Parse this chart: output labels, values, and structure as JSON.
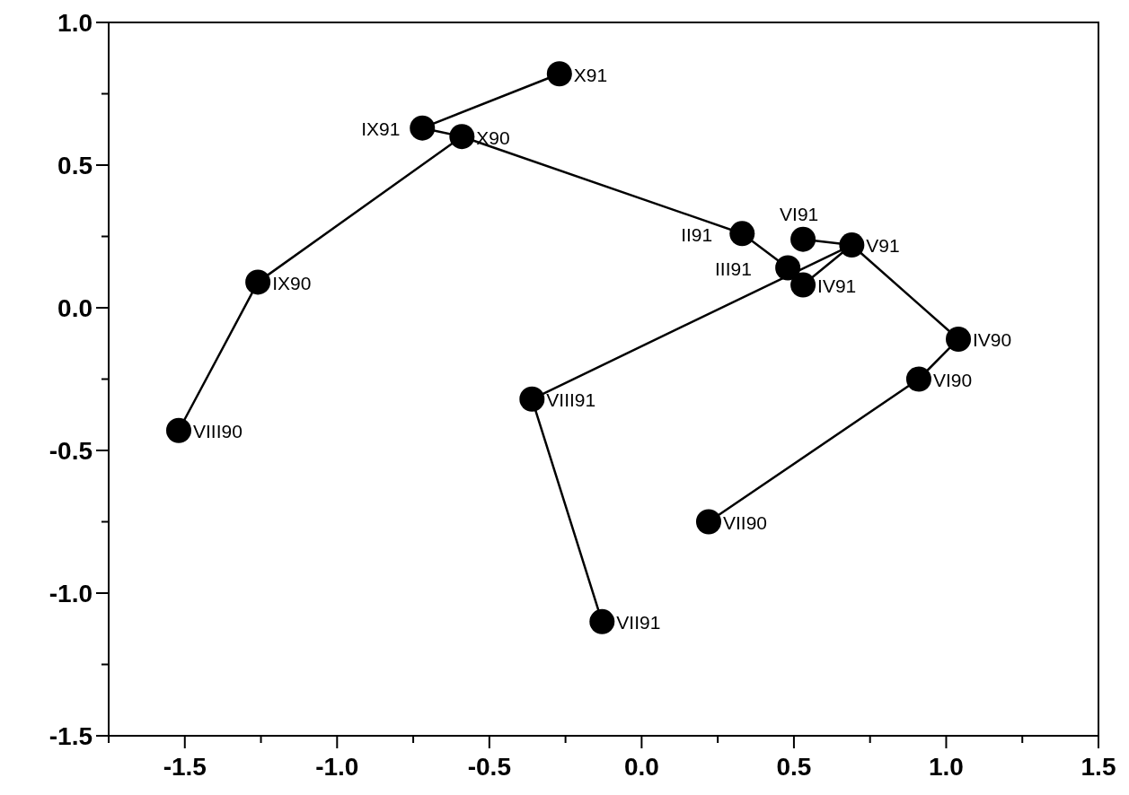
{
  "chart_data": {
    "type": "line",
    "series": [
      {
        "color": "#000000",
        "marker": "none",
        "x": [
          0.22,
          0.91,
          1.04,
          0.69
        ],
        "values": [
          -0.75,
          -0.25,
          -0.11,
          0.22
        ]
      },
      {
        "color": "#000000",
        "marker": "none",
        "x": [
          -1.52,
          -1.26,
          -0.59,
          0.33,
          0.48,
          0.53,
          0.69,
          0.53
        ],
        "values": [
          -0.43,
          0.09,
          0.6,
          0.26,
          0.14,
          0.08,
          0.22,
          0.24
        ]
      },
      {
        "color": "#000000",
        "marker": "none",
        "x": [
          0.69,
          -0.36,
          -0.13
        ],
        "values": [
          0.22,
          -0.32,
          -1.1
        ]
      },
      {
        "color": "#000000",
        "marker": "none",
        "x": [
          -0.59,
          -0.72,
          -0.27
        ],
        "values": [
          0.6,
          0.63,
          0.82
        ]
      },
      {
        "type": "scatter",
        "color": "#000000",
        "marker": "circle",
        "x": [
          1.04,
          0.91,
          0.22,
          -1.52,
          -1.26,
          -0.59,
          0.33,
          0.48,
          0.53,
          0.69,
          0.53,
          -0.13,
          -0.36,
          -0.72,
          -0.27
        ],
        "values": [
          -0.11,
          -0.25,
          -0.75,
          -0.43,
          0.09,
          0.6,
          0.26,
          0.14,
          0.08,
          0.22,
          0.24,
          -1.1,
          -0.32,
          0.63,
          0.82
        ]
      }
    ],
    "annotations": [
      {
        "text": "IV90",
        "x": 1.04,
        "y": -0.11
      },
      {
        "text": "VI90",
        "x": 0.91,
        "y": -0.25
      },
      {
        "text": "VII90",
        "x": 0.22,
        "y": -0.75
      },
      {
        "text": "VIII90",
        "x": -1.52,
        "y": -0.43
      },
      {
        "text": "IX90",
        "x": -1.26,
        "y": 0.09
      },
      {
        "text": "X90",
        "x": -0.59,
        "y": 0.6
      },
      {
        "text": "II91",
        "x": 0.33,
        "y": 0.26
      },
      {
        "text": "III91",
        "x": 0.48,
        "y": 0.14
      },
      {
        "text": "IV91",
        "x": 0.53,
        "y": 0.08
      },
      {
        "text": "V91",
        "x": 0.69,
        "y": 0.22
      },
      {
        "text": "VI91",
        "x": 0.53,
        "y": 0.24
      },
      {
        "text": "VII91",
        "x": -0.13,
        "y": -1.1
      },
      {
        "text": "VIII91",
        "x": -0.36,
        "y": -0.32
      },
      {
        "text": "IX91",
        "x": -0.72,
        "y": 0.63
      },
      {
        "text": "X91",
        "x": -0.27,
        "y": 0.82
      }
    ],
    "xlim": [
      -1.75,
      1.5
    ],
    "xticks": [
      {
        "value": -1.75,
        "label": null
      },
      -1.5,
      {
        "value": -1.25,
        "label": null
      },
      {
        "value": -1,
        "label": "-1.0"
      },
      {
        "value": -0.75,
        "label": null
      },
      -0.5,
      {
        "value": -0.25,
        "label": null
      },
      {
        "value": 0,
        "label": "0.0"
      },
      {
        "value": 0.25,
        "label": null
      },
      0.5,
      {
        "value": 0.75,
        "label": null
      },
      {
        "value": 1,
        "label": "1.0"
      },
      {
        "value": 1.25,
        "label": null
      },
      1.5
    ],
    "ylim": [
      -1.5,
      1.0
    ],
    "yticks": [
      -1.5,
      {
        "value": -1.25,
        "label": null
      },
      {
        "value": -1,
        "label": "-1.0"
      },
      {
        "value": -0.75,
        "label": null
      },
      -0.5,
      {
        "value": -0.25,
        "label": null
      },
      {
        "value": 0,
        "label": "0.0"
      },
      {
        "value": 0.25,
        "label": null
      },
      0.5,
      {
        "value": 0.75,
        "label": null
      },
      {
        "value": 1,
        "label": "1.0"
      }
    ],
    "grid": false
  }
}
